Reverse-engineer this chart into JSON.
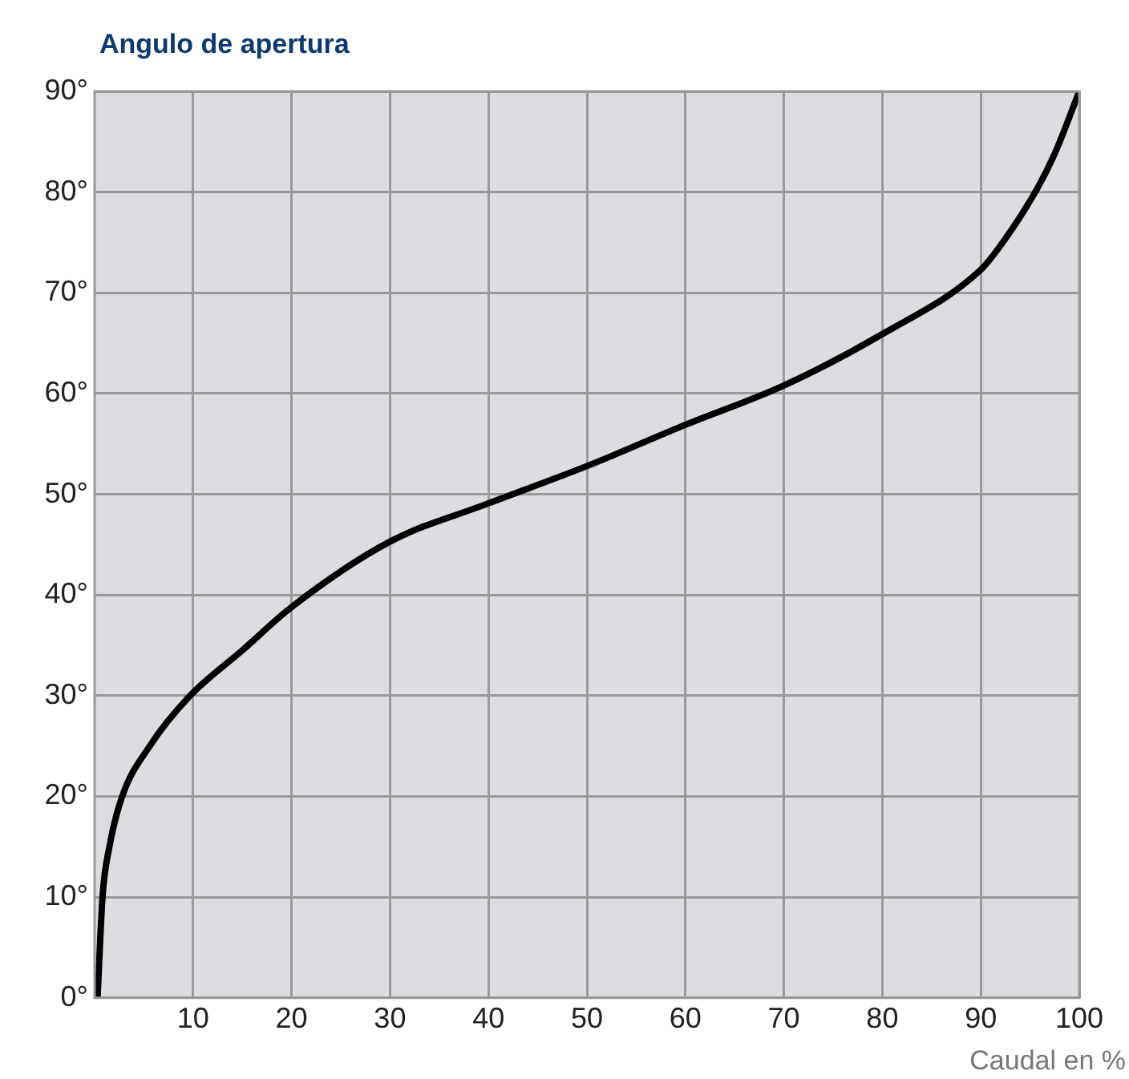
{
  "chart_data": {
    "type": "line",
    "title": "Angulo de apertura",
    "xlabel": "Caudal en %",
    "x": [
      0.3,
      0.8,
      1.5,
      2.8,
      5.6,
      9.7,
      15,
      20,
      30,
      40,
      50,
      60,
      70,
      80,
      90,
      92,
      95.7,
      97.5,
      100
    ],
    "series": [
      {
        "color": "#000000",
        "values": [
          0,
          10,
          15,
          20,
          25,
          30,
          34.5,
          38.8,
          45.3,
          49.1,
          52.8,
          56.9,
          60.8,
          65.9,
          72.3,
          74.7,
          80.3,
          83.8,
          90
        ]
      }
    ],
    "xlim": [
      0,
      100
    ],
    "xticks": [
      10,
      20,
      30,
      40,
      50,
      60,
      70,
      80,
      90,
      100
    ],
    "ylim": [
      0,
      90
    ],
    "yticks": [
      {
        "value": 0,
        "label": "0°"
      },
      {
        "value": 10,
        "label": "10°"
      },
      {
        "value": 20,
        "label": "20°"
      },
      {
        "value": 30,
        "label": "30°"
      },
      {
        "value": 40,
        "label": "40°"
      },
      {
        "value": 50,
        "label": "50°"
      },
      {
        "value": 60,
        "label": "60°"
      },
      {
        "value": 70,
        "label": "70°"
      },
      {
        "value": 80,
        "label": "80°"
      },
      {
        "value": 90,
        "label": "90°"
      }
    ],
    "grid": true,
    "legend": false,
    "marker": "none",
    "line_style": "solid"
  }
}
